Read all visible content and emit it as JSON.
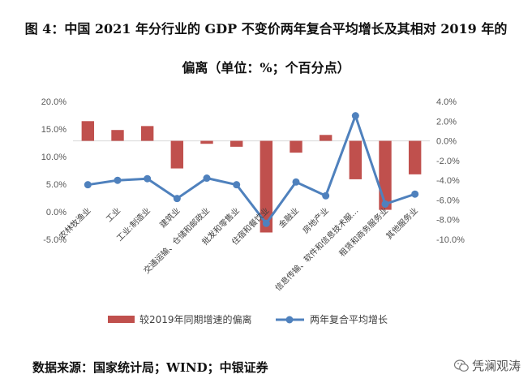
{
  "title": {
    "line1": "图 4：中国 2021 年分行业的 GDP 不变价两年复合平均增长及其相对 2019 年的",
    "line2": "偏离（单位：%；个百分点）"
  },
  "source": "数据来源：国家统计局；WIND；中银证券",
  "watermark": "凭澜观涛",
  "chart_data": {
    "type": "bar+line",
    "categories": [
      "农林牧渔业",
      "工业",
      "工业:制造业",
      "建筑业",
      "交通运输、仓储和邮政业",
      "批发和零售业",
      "住宿和餐饮业",
      "金融业",
      "房地产业",
      "信息传输、软件和信息技术服务业",
      "租赁和商务服务业",
      "其他服务业"
    ],
    "category_labels": [
      "农林牧渔业",
      "工业",
      "工业:制造业",
      "建筑业",
      "交通运输、仓储和邮政业",
      "批发和零售业",
      "住宿和餐饮业",
      "金融业",
      "房地产业",
      "信息传输、软件和信息技术服…",
      "租赁和商务服务业",
      "其他服务业"
    ],
    "series": [
      {
        "name": "较2019年同期增速的偏离",
        "type": "bar",
        "axis": "right",
        "color": "#C0504D",
        "values": [
          2.0,
          1.1,
          1.5,
          -2.8,
          -0.3,
          -0.6,
          -9.3,
          -1.2,
          0.6,
          -3.9,
          -7.0,
          -3.4
        ]
      },
      {
        "name": "两年复合平均增长",
        "type": "line",
        "axis": "left",
        "color": "#4F81BD",
        "values": [
          4.9,
          5.7,
          6.0,
          2.4,
          6.1,
          4.9,
          -2.1,
          5.4,
          2.9,
          17.4,
          1.4,
          3.2
        ]
      }
    ],
    "left_axis": {
      "min": -5,
      "max": 20,
      "step": 5,
      "ticks": [
        "20.0%",
        "15.0%",
        "10.0%",
        "5.0%",
        "0.0%",
        "-5.0%"
      ]
    },
    "right_axis": {
      "min": -10,
      "max": 4,
      "step": 2,
      "ticks": [
        "4.0%",
        "2.0%",
        "0.0%",
        "-2.0%",
        "-4.0%",
        "-6.0%",
        "-8.0%",
        "-10.0%"
      ]
    },
    "legend": [
      "较2019年同期增速的偏离",
      "两年复合平均增长"
    ],
    "legend_position": "bottom"
  }
}
